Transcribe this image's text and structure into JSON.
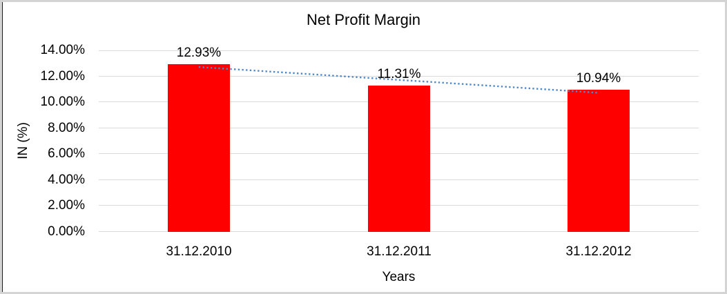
{
  "frame": {
    "background": "#ffffff",
    "outer_border_color": "#d4d4d4",
    "left_edge_color": "#1a1a1a"
  },
  "chart_data": {
    "type": "bar",
    "title": "Net Profit Margin",
    "categories": [
      "31.12.2010",
      "31.12.2011",
      "31.12.2012"
    ],
    "series": [
      {
        "name": "Net Profit Margin",
        "values": [
          12.93,
          11.31,
          10.94
        ],
        "color": "#ff0000"
      }
    ],
    "data_labels": [
      "12.93%",
      "11.31%",
      "10.94%"
    ],
    "xlabel": "Years",
    "ylabel": "IN (%)",
    "ylim": [
      0,
      14
    ],
    "ytick_labels": [
      "0.00%",
      "2.00%",
      "4.00%",
      "6.00%",
      "8.00%",
      "10.00%",
      "12.00%",
      "14.00%"
    ],
    "grid": true,
    "gridline_color": "#d9d9d9",
    "text_color": "#000000",
    "legend": "none",
    "trendline": {
      "type": "linear",
      "style": "dotted",
      "color": "#4f88c9",
      "fit_start": 12.72,
      "fit_end": 10.73
    }
  }
}
